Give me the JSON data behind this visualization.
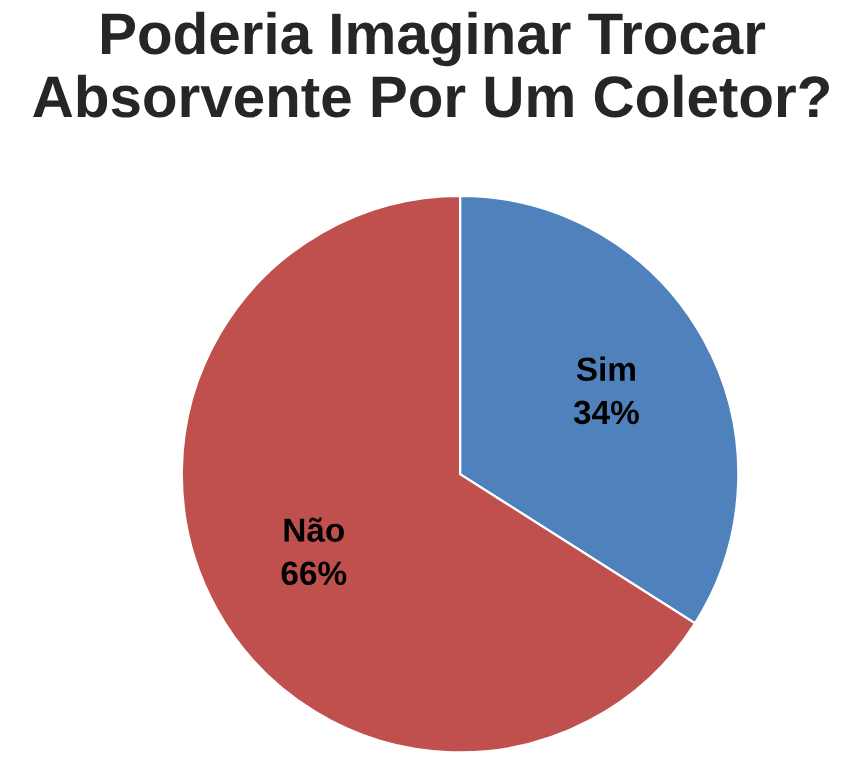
{
  "chart_data": {
    "type": "pie",
    "title": "Poderia Imaginar Trocar\nAbsorvente Por Um Coletor?",
    "categories": [
      "Sim",
      "Não"
    ],
    "values": [
      34,
      66
    ],
    "value_labels": [
      "34%",
      "66%"
    ],
    "colors": [
      "#4f81bd",
      "#c0504d"
    ],
    "legend": false
  }
}
